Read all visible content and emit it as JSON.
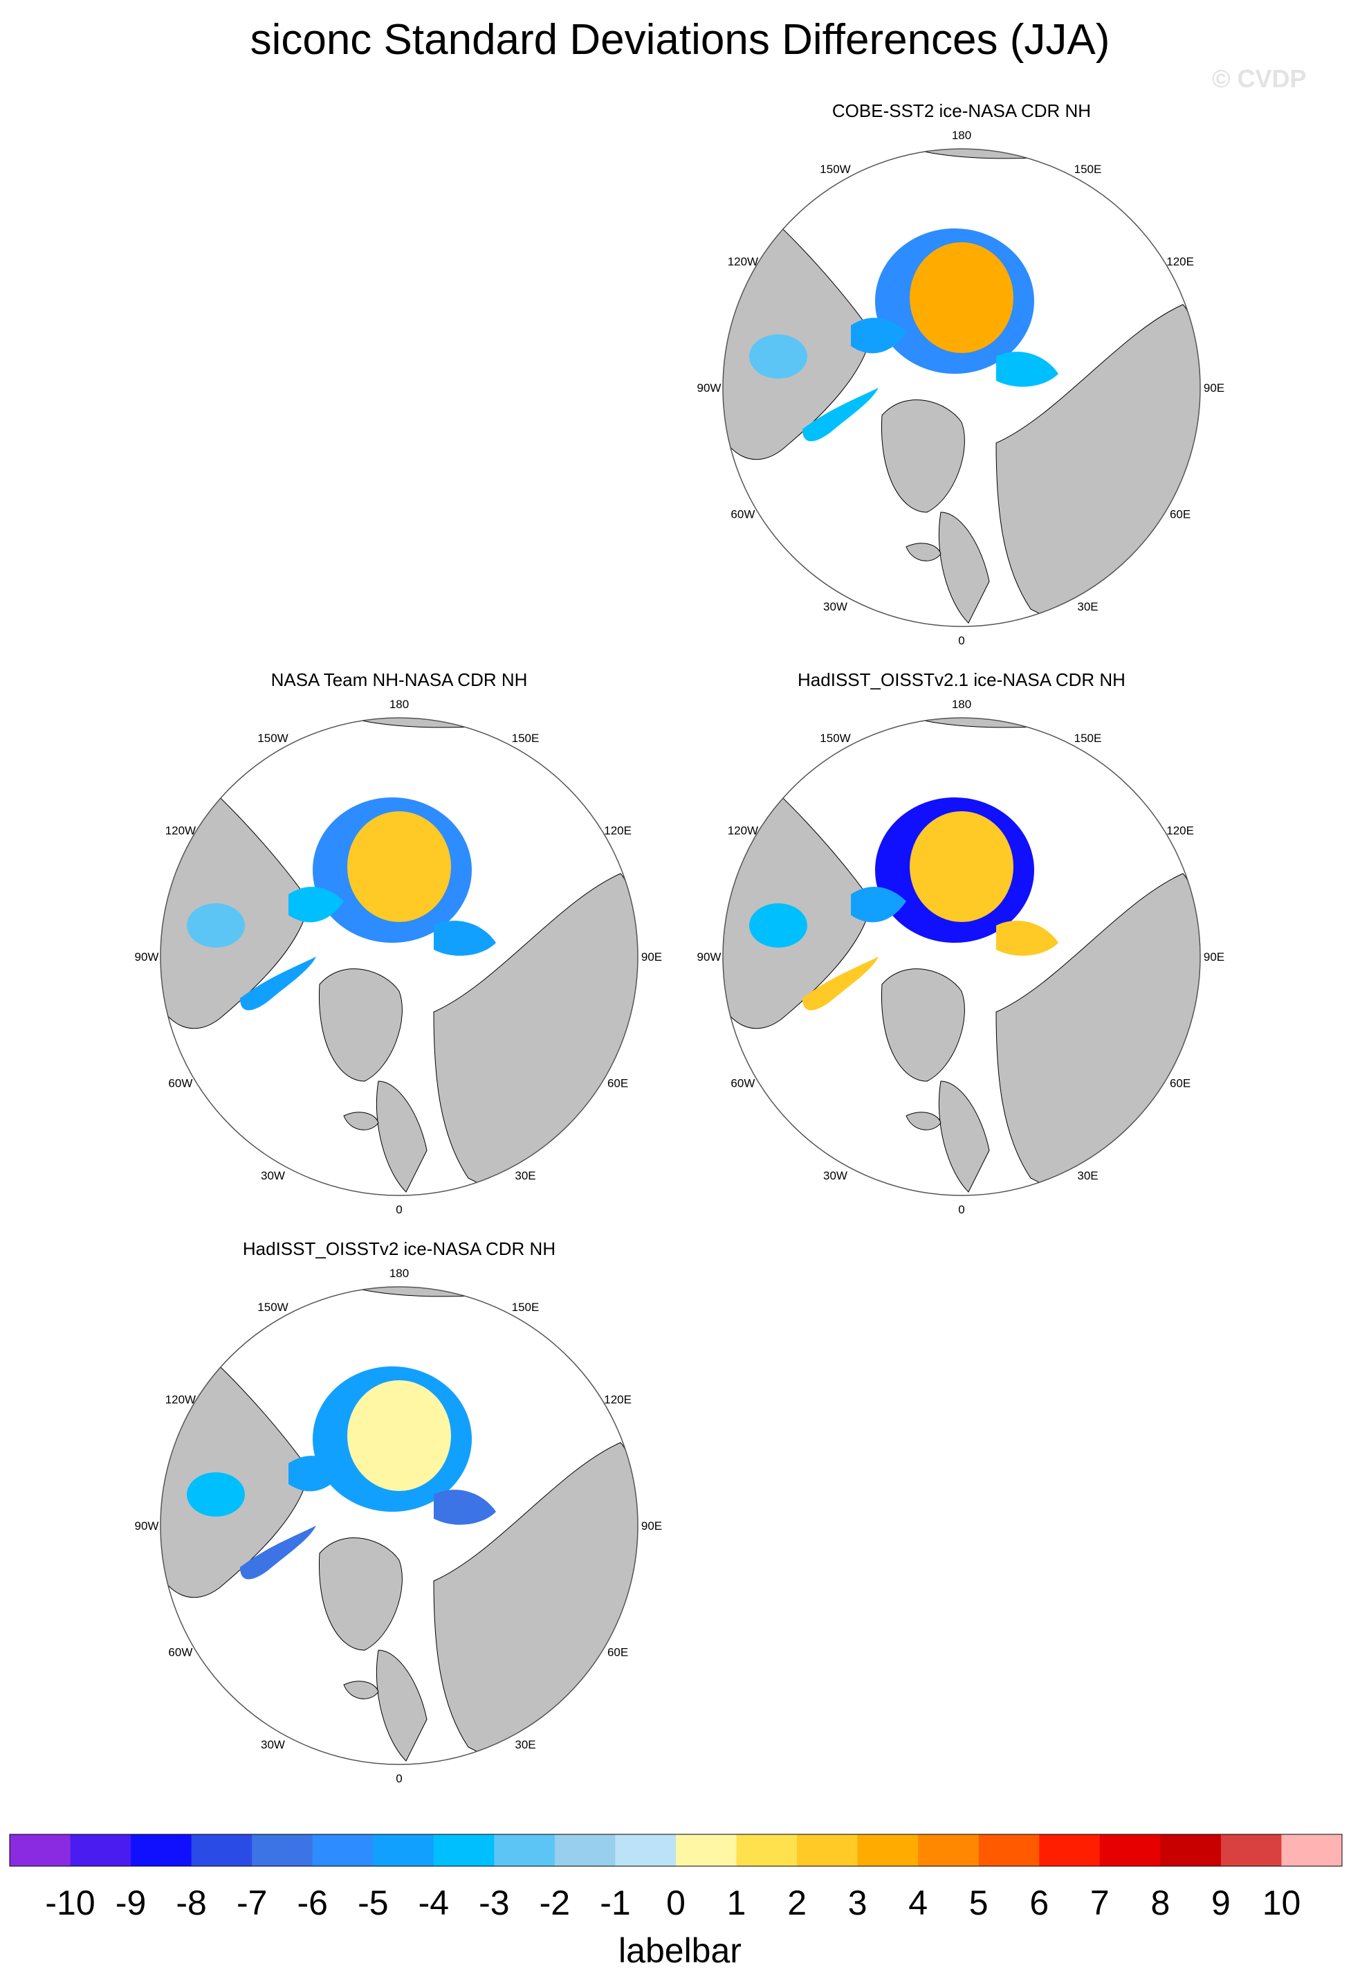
{
  "title": "siconc Standard Deviations Differences (JJA)",
  "watermark": "© CVDP",
  "projection": "north-polar-stereographic",
  "land_color": "#c0c0c0",
  "ocean_color": "#ffffff",
  "longitude_labels": {
    "top": "180",
    "top_right": "150E",
    "right_upper": "120E",
    "right": "90E",
    "right_lower": "60E",
    "bottom_right": "30E",
    "bottom": "0",
    "bottom_left": "30W",
    "left_lower": "60W",
    "left": "90W",
    "left_upper": "120W",
    "top_left": "150W"
  },
  "panels": [
    {
      "id": "cobe",
      "title": "COBE-SST2 ice-NASA CDR NH",
      "pattern": {
        "center_value": 4,
        "ring_value": -5,
        "atlantic_value": -3,
        "canada_value": -4,
        "hudson_value": -2
      }
    },
    {
      "id": "nasateam",
      "title": "NASA Team NH-NASA CDR NH",
      "pattern": {
        "center_value": 3,
        "ring_value": -5,
        "atlantic_value": -4,
        "canada_value": -3,
        "hudson_value": -2
      }
    },
    {
      "id": "hadisst21",
      "title": "HadISST_OISSTv2.1 ice-NASA CDR NH",
      "pattern": {
        "center_value": 3,
        "ring_value": -8,
        "atlantic_value": 3,
        "canada_value": -4,
        "hudson_value": -3
      }
    },
    {
      "id": "hadisst2",
      "title": "HadISST_OISSTv2 ice-NASA CDR NH",
      "pattern": {
        "center_value": 1,
        "ring_value": -4,
        "atlantic_value": -6,
        "canada_value": -4,
        "hudson_value": -3
      }
    }
  ],
  "labelbar": {
    "label": "labelbar",
    "ticks": [
      "-10",
      "-9",
      "-8",
      "-7",
      "-6",
      "-5",
      "-4",
      "-3",
      "-2",
      "-1",
      "0",
      "1",
      "2",
      "3",
      "4",
      "5",
      "6",
      "7",
      "8",
      "9",
      "10"
    ],
    "colors": [
      "#8a2be2",
      "#4b1cf0",
      "#1010ff",
      "#2b4be6",
      "#3c74e6",
      "#2d8cff",
      "#12a0ff",
      "#00bfff",
      "#5cc5f5",
      "#98cfec",
      "#bce2f7",
      "#fff7a3",
      "#ffe14d",
      "#ffc926",
      "#ffab00",
      "#ff8800",
      "#ff5a00",
      "#ff1e00",
      "#e60000",
      "#c80000",
      "#d94040",
      "#ffb3b3"
    ]
  }
}
